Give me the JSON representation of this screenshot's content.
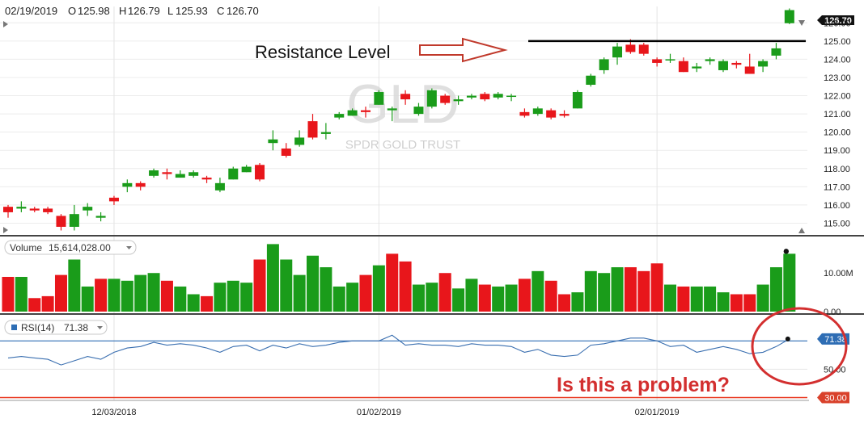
{
  "header": {
    "date": "02/19/2019",
    "open_label": "O",
    "open": "125.98",
    "high_label": "H",
    "high": "126.79",
    "low_label": "L",
    "low": "125.93",
    "close_label": "C",
    "close": "126.70"
  },
  "watermark": {
    "symbol": "GLD",
    "name": "SPDR GOLD TRUST"
  },
  "annotations": {
    "resistance": "Resistance Level",
    "question": "Is this a problem?"
  },
  "volume_legend": {
    "label": "Volume",
    "value": "15,614,028.00"
  },
  "rsi_legend": {
    "label": "RSI(14)",
    "value": "71.38"
  },
  "colors": {
    "up": "#1a9c1a",
    "down": "#e8161b",
    "rsi_line": "#3a6fb0",
    "badge_blue": "#2e6db4",
    "badge_red": "#d9412b",
    "annotation_red": "#d32f2f"
  },
  "chart_data": [
    {
      "type": "candlestick",
      "ylim": [
        114.4,
        126.9
      ],
      "price_ticks": [
        "126.00",
        "125.00",
        "124.00",
        "123.00",
        "122.00",
        "121.00",
        "120.00",
        "119.00",
        "118.00",
        "117.00",
        "116.00",
        "115.00"
      ],
      "last_price": "126.70",
      "resistance_level": 125.0,
      "x_ticks": [
        {
          "label": "12/03/2018",
          "index": 8
        },
        {
          "label": "01/02/2019",
          "index": 28
        },
        {
          "label": "02/01/2019",
          "index": 49
        }
      ],
      "candles": [
        [
          115.9,
          115.6,
          116.0,
          115.3
        ],
        [
          115.8,
          115.9,
          116.2,
          115.6
        ],
        [
          115.8,
          115.7,
          115.9,
          115.6
        ],
        [
          115.8,
          115.6,
          115.9,
          115.5
        ],
        [
          115.4,
          114.8,
          115.5,
          114.6
        ],
        [
          114.8,
          115.5,
          116.0,
          114.6
        ],
        [
          115.7,
          115.9,
          116.1,
          115.4
        ],
        [
          115.3,
          115.4,
          115.6,
          115.1
        ],
        [
          116.4,
          116.2,
          116.5,
          116.0
        ],
        [
          117.0,
          117.2,
          117.4,
          116.7
        ],
        [
          117.2,
          117.0,
          117.3,
          116.8
        ],
        [
          117.6,
          117.9,
          118.0,
          117.5
        ],
        [
          117.8,
          117.7,
          118.0,
          117.4
        ],
        [
          117.5,
          117.7,
          117.9,
          117.5
        ],
        [
          117.6,
          117.8,
          117.9,
          117.5
        ],
        [
          117.5,
          117.4,
          117.6,
          117.2
        ],
        [
          116.8,
          117.2,
          117.5,
          116.7
        ],
        [
          117.4,
          118.0,
          118.1,
          117.4
        ],
        [
          117.8,
          118.1,
          118.2,
          117.8
        ],
        [
          118.2,
          117.4,
          118.3,
          117.3
        ],
        [
          119.4,
          119.6,
          120.1,
          119.0
        ],
        [
          119.1,
          118.7,
          119.4,
          118.6
        ],
        [
          119.3,
          119.7,
          120.1,
          119.2
        ],
        [
          120.6,
          119.7,
          121.0,
          119.6
        ],
        [
          119.9,
          120.0,
          120.5,
          119.6
        ],
        [
          120.8,
          121.0,
          121.1,
          120.7
        ],
        [
          120.9,
          121.2,
          121.3,
          120.9
        ],
        [
          121.2,
          121.1,
          121.4,
          120.8
        ],
        [
          121.5,
          122.2,
          122.3,
          121.5
        ],
        [
          121.2,
          121.3,
          121.4,
          120.6
        ],
        [
          122.1,
          121.8,
          122.3,
          121.5
        ],
        [
          121.0,
          121.4,
          121.6,
          120.9
        ],
        [
          121.4,
          122.3,
          122.4,
          121.3
        ],
        [
          122.0,
          121.6,
          122.1,
          121.5
        ],
        [
          121.7,
          121.8,
          122.0,
          121.5
        ],
        [
          121.9,
          122.0,
          122.1,
          121.8
        ],
        [
          122.1,
          121.8,
          122.2,
          121.7
        ],
        [
          121.9,
          122.1,
          122.2,
          121.8
        ],
        [
          122.0,
          122.0,
          122.1,
          121.7
        ],
        [
          121.1,
          120.9,
          121.3,
          120.8
        ],
        [
          121.0,
          121.3,
          121.4,
          120.9
        ],
        [
          121.2,
          120.8,
          121.3,
          120.7
        ],
        [
          121.0,
          120.9,
          121.2,
          120.8
        ],
        [
          121.3,
          122.2,
          122.3,
          121.3
        ],
        [
          122.6,
          123.1,
          123.2,
          122.5
        ],
        [
          123.4,
          124.0,
          124.1,
          123.2
        ],
        [
          124.1,
          124.7,
          124.9,
          123.7
        ],
        [
          124.8,
          124.4,
          125.1,
          124.3
        ],
        [
          124.8,
          124.3,
          124.9,
          124.2
        ],
        [
          124.0,
          123.8,
          124.1,
          123.6
        ],
        [
          124.0,
          124.0,
          124.3,
          123.8
        ],
        [
          123.9,
          123.3,
          124.1,
          123.3
        ],
        [
          123.5,
          123.6,
          123.8,
          123.3
        ],
        [
          123.9,
          124.0,
          124.1,
          123.7
        ],
        [
          123.4,
          123.9,
          124.0,
          123.3
        ],
        [
          123.8,
          123.7,
          123.9,
          123.5
        ],
        [
          123.6,
          123.2,
          124.3,
          123.2
        ],
        [
          123.6,
          123.9,
          124.0,
          123.3
        ],
        [
          124.2,
          124.6,
          124.9,
          124.0
        ],
        [
          125.98,
          126.7,
          126.79,
          125.93
        ]
      ]
    },
    {
      "type": "bar",
      "title": "Volume",
      "tick_labels": [
        "10.00M",
        "0.00"
      ],
      "ylim": [
        0,
        18
      ],
      "values": [
        9.0,
        9.0,
        3.5,
        4.0,
        9.5,
        13.5,
        6.5,
        8.5,
        8.5,
        8.0,
        9.5,
        10.0,
        8.0,
        6.5,
        4.5,
        4.0,
        7.5,
        8.0,
        7.5,
        13.5,
        17.5,
        13.5,
        9.5,
        14.5,
        11.5,
        6.5,
        7.5,
        9.5,
        12.0,
        15.0,
        13.0,
        7.0,
        7.5,
        10.0,
        6.0,
        8.5,
        7.0,
        6.5,
        7.0,
        8.5,
        10.5,
        8.0,
        4.5,
        5.0,
        10.5,
        10.0,
        11.5,
        11.5,
        10.5,
        12.5,
        7.0,
        6.5,
        6.5,
        6.5,
        5.0,
        4.5,
        4.5,
        7.0,
        11.5,
        15.0
      ],
      "up": [
        false,
        true,
        false,
        false,
        false,
        true,
        true,
        false,
        true,
        true,
        true,
        true,
        false,
        true,
        true,
        false,
        true,
        true,
        true,
        false,
        true,
        true,
        true,
        true,
        true,
        true,
        true,
        false,
        true,
        false,
        false,
        true,
        true,
        false,
        true,
        true,
        false,
        true,
        true,
        false,
        true,
        false,
        false,
        true,
        true,
        true,
        true,
        false,
        false,
        false,
        true,
        false,
        true,
        true,
        true,
        false,
        false,
        true,
        true,
        true
      ]
    },
    {
      "type": "line",
      "title": "RSI(14)",
      "ylim": [
        28,
        85
      ],
      "tick_labels": [
        "71.38",
        "50.00",
        "30.00"
      ],
      "reference_lines": [
        70,
        30
      ],
      "values": [
        58,
        59,
        58,
        57,
        53,
        56,
        59,
        57,
        62,
        65,
        66,
        69,
        67,
        68,
        67,
        65,
        62,
        66,
        67,
        63,
        67,
        65,
        68,
        66,
        67,
        69,
        70,
        70,
        70,
        74,
        67,
        68,
        67,
        67,
        66,
        68,
        67,
        67,
        66,
        62,
        64,
        60,
        59,
        60,
        67,
        68,
        70,
        72,
        72,
        70,
        66,
        67,
        62,
        64,
        66,
        64,
        61,
        62,
        66,
        71.38
      ]
    }
  ]
}
